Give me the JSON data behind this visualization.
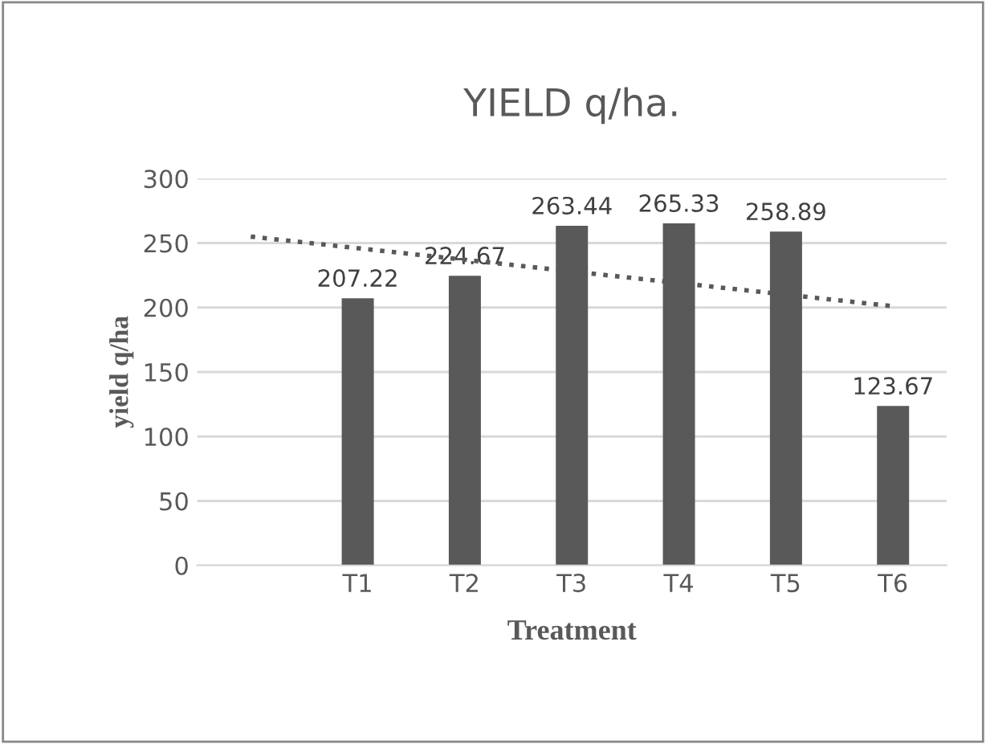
{
  "chart_data": {
    "type": "bar",
    "title": "YIELD q/ha.",
    "xlabel": "Treatment",
    "ylabel": "yield q/ha",
    "categories": [
      null,
      "T1",
      "T2",
      "T3",
      "T4",
      "T5",
      "T6"
    ],
    "series": [
      {
        "color": "#595959",
        "values": [
          null,
          207.22,
          224.67,
          263.44,
          265.33,
          258.89,
          123.67
        ],
        "data_labels": true
      },
      {
        "type": "line",
        "color": "#595959",
        "line_style": "dotted",
        "values": [
          255,
          246,
          237,
          228,
          219,
          210,
          201
        ]
      }
    ],
    "ylim": [
      0,
      300
    ],
    "yticks": [
      0,
      50,
      100,
      150,
      200,
      250,
      300
    ],
    "grid": "y"
  }
}
